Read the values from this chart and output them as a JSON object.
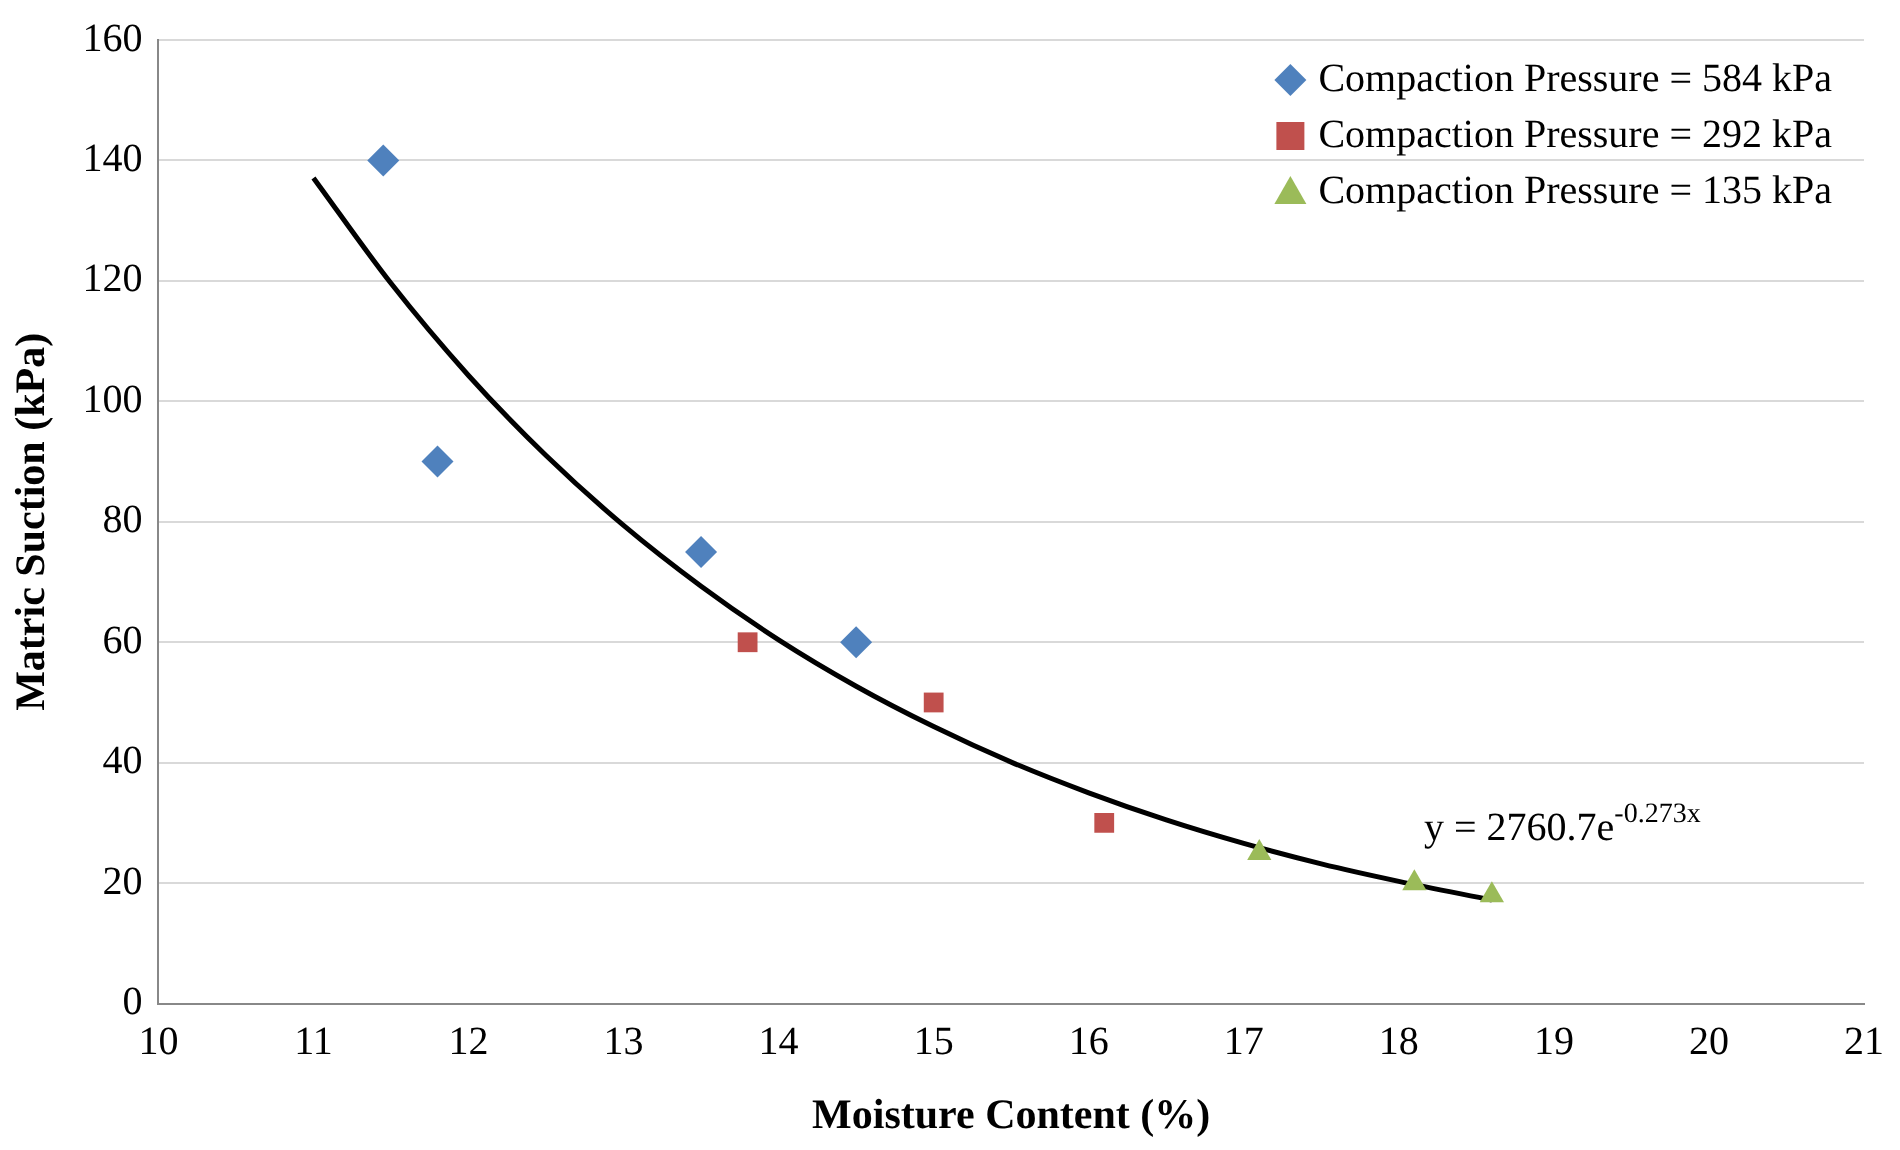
{
  "chart_data": {
    "type": "scatter",
    "xlabel": "Moisture Content (%)",
    "ylabel": "Matric Suction (kPa)",
    "xlim": [
      10,
      21
    ],
    "xticks": [
      10,
      11,
      12,
      13,
      14,
      15,
      16,
      17,
      18,
      19,
      20,
      21
    ],
    "ylim": [
      0,
      160
    ],
    "yticks": [
      0,
      20,
      40,
      60,
      80,
      100,
      120,
      140,
      160
    ],
    "grid": "y",
    "legend": "top right",
    "series": [
      {
        "name": "Compaction Pressure = 584 kPa",
        "color": "#4f81bd",
        "marker": "diamond",
        "x": [
          11.45,
          11.8,
          13.5,
          14.5
        ],
        "values": [
          140,
          90,
          75,
          60
        ]
      },
      {
        "name": "Compaction Pressure = 292 kPa",
        "color": "#c0504d",
        "marker": "square",
        "x": [
          13.8,
          15,
          16.1
        ],
        "values": [
          60,
          50,
          30
        ]
      },
      {
        "name": "Compaction Pressure = 135 kPa",
        "color": "#9bbb59",
        "marker": "triangle",
        "x": [
          17.1,
          18.1,
          18.6
        ],
        "values": [
          25,
          20,
          18
        ]
      },
      {
        "type": "line",
        "color": "#000000",
        "marker": "none",
        "x": [
          11,
          11.5,
          12,
          12.5,
          13,
          13.5,
          14,
          14.5,
          15,
          15.5,
          16,
          16.5,
          17,
          17.5,
          18,
          18.6
        ],
        "values": [
          137.1,
          119.6,
          104.3,
          91.0,
          79.4,
          69.3,
          60.4,
          52.7,
          46.0,
          40.1,
          35.0,
          30.5,
          26.6,
          23.2,
          20.3,
          17.2
        ]
      }
    ],
    "annotations": [
      "y = 2760.7e$^{-0.273x}$"
    ]
  }
}
